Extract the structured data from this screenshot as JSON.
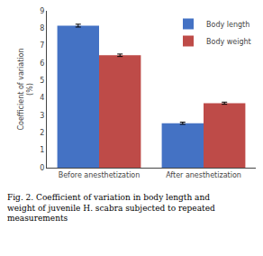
{
  "chart_data": {
    "type": "bar",
    "categories": [
      "Before anesthetization",
      "After anesthetization"
    ],
    "series": [
      {
        "name": "Body length",
        "color": "#4472C4",
        "values": [
          8.15,
          2.55
        ],
        "errors": [
          0.08,
          0.06
        ]
      },
      {
        "name": "Body weight",
        "color": "#BE4B48",
        "values": [
          6.45,
          3.7
        ],
        "errors": [
          0.07,
          0.06
        ]
      }
    ],
    "ylabel": "Coefficient of variation\n(%)",
    "ylim": [
      0,
      9
    ],
    "yticks": [
      0,
      1,
      2,
      3,
      4,
      5,
      6,
      7,
      8,
      9
    ],
    "grid": false,
    "legend": "upper right",
    "annotations": [
      "Fig. 2. Coefficient of variation in body length and weight of juvenile H. scabra subjected to repeated measurements"
    ]
  }
}
